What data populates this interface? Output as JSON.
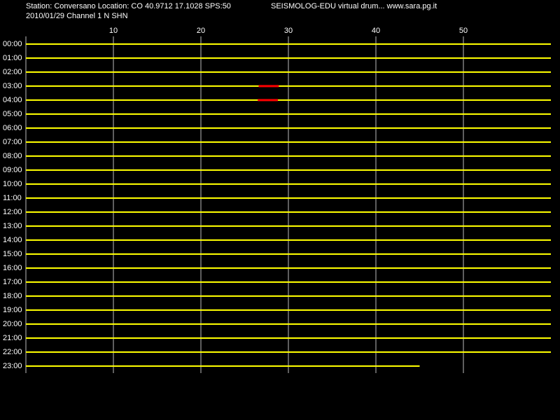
{
  "header": {
    "station": "Station: Conversano Location: CO 40.9712 17.1028 SPS:50",
    "source": "SEISMOLOG-EDU virtual drum... www.sara.pg.it",
    "date_channel": "2010/01/29  Channel 1 N SHN"
  },
  "drum": {
    "xlim": [
      0,
      60
    ],
    "xticks": [
      10,
      20,
      30,
      40,
      50
    ],
    "rows": [
      "00:00",
      "01:00",
      "02:00",
      "03:00",
      "04:00",
      "05:00",
      "06:00",
      "07:00",
      "08:00",
      "09:00",
      "10:00",
      "11:00",
      "12:00",
      "13:00",
      "14:00",
      "15:00",
      "16:00",
      "17:00",
      "18:00",
      "19:00",
      "20:00",
      "21:00",
      "22:00",
      "23:00"
    ],
    "trace_color": "#ffff00",
    "event_color": "#ff0000",
    "last_row_end": 45,
    "events": [
      {
        "row": 3,
        "start": 26.6,
        "end": 28.9
      },
      {
        "row": 4,
        "start": 26.5,
        "end": 28.8
      }
    ]
  }
}
